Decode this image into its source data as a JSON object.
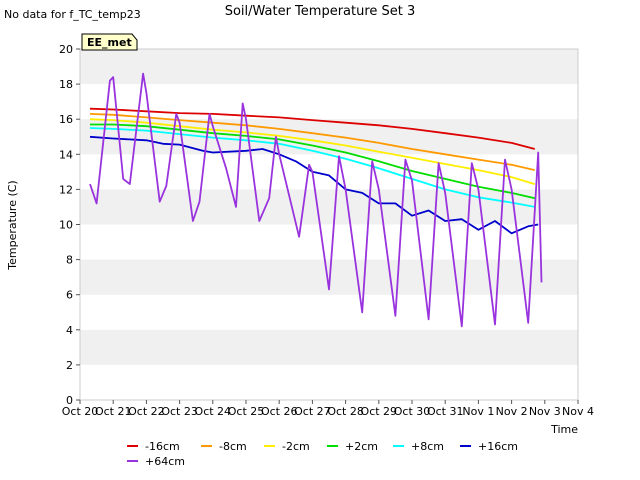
{
  "header": {
    "no_data_note": "No data for f_TC_temp23",
    "site_badge": "EE_met"
  },
  "chart_data": {
    "type": "line",
    "title": "Soil/Water Temperature Set 3",
    "xlabel": "Time",
    "ylabel": "Temperature (C)",
    "xlim": [
      "Oct 20",
      "Nov 4"
    ],
    "ylim": [
      0,
      20
    ],
    "x_ticks": [
      "Oct 20",
      "Oct 21",
      "Oct 22",
      "Oct 23",
      "Oct 24",
      "Oct 25",
      "Oct 26",
      "Oct 27",
      "Oct 28",
      "Oct 29",
      "Oct 30",
      "Oct 31",
      "Nov 1",
      "Nov 2",
      "Nov 3",
      "Nov 4"
    ],
    "y_ticks": [
      0,
      2,
      4,
      6,
      8,
      10,
      12,
      14,
      16,
      18,
      20
    ],
    "grid": false,
    "background_bands": "alternating light gray bands every 2 units",
    "legend_placement": "bottom",
    "series": [
      {
        "name": "-16cm",
        "color": "#dd0000",
        "x": [
          0.3,
          1,
          2,
          3,
          4,
          5,
          6,
          7,
          8,
          9,
          10,
          11,
          12,
          13,
          13.7
        ],
        "y": [
          16.6,
          16.55,
          16.45,
          16.35,
          16.3,
          16.2,
          16.1,
          15.95,
          15.8,
          15.65,
          15.45,
          15.2,
          14.95,
          14.65,
          14.3
        ]
      },
      {
        "name": "-8cm",
        "color": "#ff9900",
        "x": [
          0.3,
          1,
          2,
          3,
          4,
          5,
          6,
          7,
          8,
          9,
          10,
          11,
          12,
          13,
          13.7
        ],
        "y": [
          16.3,
          16.25,
          16.1,
          15.95,
          15.8,
          15.65,
          15.45,
          15.2,
          14.95,
          14.65,
          14.3,
          14.0,
          13.7,
          13.4,
          13.1
        ]
      },
      {
        "name": "-2cm",
        "color": "#ffee00",
        "x": [
          0.3,
          1,
          2,
          3,
          4,
          5,
          6,
          7,
          8,
          9,
          10,
          11,
          12,
          13,
          13.7
        ],
        "y": [
          16.0,
          15.95,
          15.8,
          15.6,
          15.4,
          15.25,
          15.05,
          14.8,
          14.5,
          14.15,
          13.8,
          13.45,
          13.1,
          12.7,
          12.3
        ]
      },
      {
        "name": "+2cm",
        "color": "#00dd00",
        "x": [
          0.3,
          1,
          2,
          3,
          4,
          5,
          6,
          7,
          8,
          9,
          10,
          11,
          12,
          13,
          13.7
        ],
        "y": [
          15.7,
          15.7,
          15.6,
          15.4,
          15.2,
          15.05,
          14.85,
          14.5,
          14.1,
          13.6,
          13.05,
          12.6,
          12.15,
          11.8,
          11.5
        ]
      },
      {
        "name": "+8cm",
        "color": "#00ffff",
        "x": [
          0.3,
          1,
          2,
          3,
          4,
          5,
          6,
          7,
          8,
          9,
          10,
          11,
          12,
          13,
          13.7
        ],
        "y": [
          15.5,
          15.45,
          15.35,
          15.15,
          14.95,
          14.8,
          14.6,
          14.2,
          13.75,
          13.2,
          12.6,
          12.0,
          11.55,
          11.25,
          11.0
        ]
      },
      {
        "name": "+16cm",
        "color": "#0000cc",
        "x": [
          0.3,
          1,
          2,
          2.5,
          3,
          3.7,
          4,
          5,
          5.5,
          6,
          6.5,
          7,
          7.5,
          8,
          8.5,
          9,
          9.5,
          10,
          10.5,
          11,
          11.5,
          12,
          12.5,
          13,
          13.5,
          13.8
        ],
        "y": [
          15.0,
          14.9,
          14.8,
          14.6,
          14.55,
          14.2,
          14.1,
          14.2,
          14.3,
          14.0,
          13.6,
          13.0,
          12.8,
          12.0,
          11.8,
          11.2,
          11.2,
          10.5,
          10.8,
          10.2,
          10.3,
          9.7,
          10.2,
          9.5,
          9.9,
          10.0
        ]
      },
      {
        "name": "+64cm",
        "color": "#9933dd",
        "x": [
          0.3,
          0.5,
          0.9,
          1.0,
          1.3,
          1.5,
          1.9,
          2.0,
          2.4,
          2.6,
          2.9,
          3.0,
          3.4,
          3.6,
          3.9,
          4.0,
          4.4,
          4.7,
          4.9,
          5.0,
          5.4,
          5.7,
          5.9,
          6.0,
          6.6,
          6.9,
          7.0,
          7.5,
          7.8,
          8.0,
          8.5,
          8.8,
          9.0,
          9.5,
          9.8,
          10.0,
          10.5,
          10.8,
          11.0,
          11.5,
          11.8,
          12.0,
          12.5,
          12.8,
          13.0,
          13.5,
          13.8,
          13.9
        ],
        "y": [
          12.3,
          11.2,
          18.2,
          18.4,
          12.6,
          12.3,
          18.6,
          17.5,
          11.3,
          12.2,
          16.3,
          15.8,
          10.2,
          11.3,
          16.3,
          15.6,
          13.2,
          11.0,
          16.9,
          16.0,
          10.2,
          11.5,
          15.0,
          14.0,
          9.3,
          13.4,
          13.0,
          6.3,
          13.9,
          12.0,
          5.0,
          13.6,
          12.0,
          4.8,
          13.7,
          12.5,
          4.6,
          13.5,
          11.8,
          4.2,
          13.5,
          12.0,
          4.3,
          13.7,
          12.0,
          4.4,
          14.1,
          6.7
        ]
      }
    ]
  }
}
